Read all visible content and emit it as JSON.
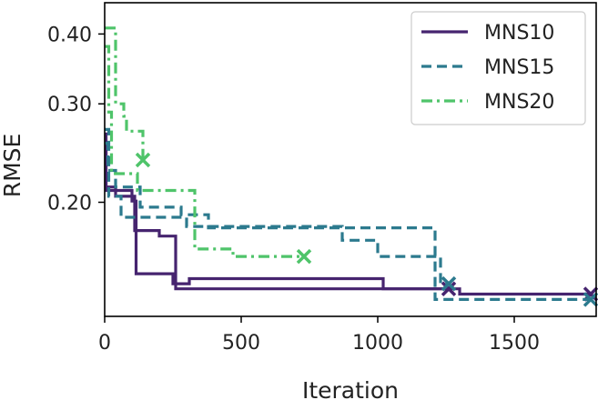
{
  "chart_data": {
    "type": "line",
    "title": "",
    "xlabel": "Iteration",
    "ylabel": "RMSE",
    "y_scale": "log",
    "xlim": [
      0,
      1800
    ],
    "ylim": [
      0.125,
      0.455
    ],
    "x_ticks": [
      0,
      500,
      1000,
      1500
    ],
    "x_tick_labels": [
      "0",
      "500",
      "1000",
      "1500"
    ],
    "y_ticks": [
      0.2,
      0.3,
      0.4
    ],
    "y_tick_labels": [
      "0.20",
      "0.30",
      "0.40"
    ],
    "legend_position": "top-right",
    "series": [
      {
        "name": "MNS10",
        "color": "#46246f",
        "style": "solid",
        "runs": [
          {
            "points": [
              [
                0,
                0.265
              ],
              [
                5,
                0.265
              ],
              [
                5,
                0.213
              ],
              [
                40,
                0.213
              ],
              [
                40,
                0.205
              ],
              [
                110,
                0.205
              ],
              [
                110,
                0.178
              ],
              [
                200,
                0.178
              ],
              [
                200,
                0.174
              ],
              [
                260,
                0.174
              ],
              [
                260,
                0.14
              ],
              [
                1260,
                0.14
              ]
            ],
            "end_marker": [
              1260,
              0.14
            ]
          },
          {
            "points": [
              [
                0,
                0.25
              ],
              [
                5,
                0.25
              ],
              [
                5,
                0.21
              ],
              [
                100,
                0.21
              ],
              [
                100,
                0.201
              ],
              [
                115,
                0.201
              ],
              [
                115,
                0.149
              ],
              [
                250,
                0.149
              ],
              [
                250,
                0.143
              ],
              [
                310,
                0.143
              ],
              [
                310,
                0.146
              ],
              [
                1020,
                0.146
              ],
              [
                1020,
                0.14
              ],
              [
                1300,
                0.14
              ],
              [
                1300,
                0.137
              ],
              [
                1780,
                0.137
              ]
            ],
            "end_marker": [
              1780,
              0.137
            ]
          }
        ]
      },
      {
        "name": "MNS15",
        "color": "#2c7a8e",
        "style": "dashed",
        "runs": [
          {
            "points": [
              [
                0,
                0.27
              ],
              [
                15,
                0.27
              ],
              [
                15,
                0.205
              ],
              [
                60,
                0.205
              ],
              [
                60,
                0.188
              ],
              [
                300,
                0.188
              ],
              [
                300,
                0.181
              ],
              [
                870,
                0.181
              ],
              [
                870,
                0.171
              ],
              [
                1000,
                0.171
              ],
              [
                1000,
                0.16
              ],
              [
                1230,
                0.16
              ],
              [
                1230,
                0.143
              ],
              [
                1260,
                0.143
              ]
            ],
            "end_marker": [
              1260,
              0.143
            ]
          },
          {
            "points": [
              [
                0,
                0.255
              ],
              [
                12,
                0.255
              ],
              [
                12,
                0.228
              ],
              [
                40,
                0.228
              ],
              [
                40,
                0.213
              ],
              [
                130,
                0.213
              ],
              [
                130,
                0.196
              ],
              [
                280,
                0.196
              ],
              [
                280,
                0.19
              ],
              [
                380,
                0.19
              ],
              [
                380,
                0.18
              ],
              [
                1210,
                0.18
              ],
              [
                1210,
                0.134
              ],
              [
                1780,
                0.134
              ]
            ],
            "end_marker": [
              1780,
              0.134
            ]
          }
        ]
      },
      {
        "name": "MNS20",
        "color": "#4fc46a",
        "style": "dashdot",
        "runs": [
          {
            "points": [
              [
                0,
                0.41
              ],
              [
                40,
                0.41
              ],
              [
                40,
                0.3
              ],
              [
                70,
                0.3
              ],
              [
                70,
                0.285
              ],
              [
                80,
                0.285
              ],
              [
                80,
                0.268
              ],
              [
                140,
                0.268
              ],
              [
                140,
                0.238
              ]
            ],
            "end_marker": [
              140,
              0.238
            ]
          },
          {
            "points": [
              [
                0,
                0.38
              ],
              [
                15,
                0.38
              ],
              [
                15,
                0.29
              ],
              [
                25,
                0.29
              ],
              [
                25,
                0.225
              ],
              [
                120,
                0.225
              ],
              [
                120,
                0.21
              ],
              [
                330,
                0.21
              ],
              [
                330,
                0.165
              ],
              [
                470,
                0.165
              ],
              [
                470,
                0.16
              ],
              [
                730,
                0.16
              ]
            ],
            "end_marker": [
              730,
              0.16
            ]
          }
        ]
      }
    ]
  }
}
